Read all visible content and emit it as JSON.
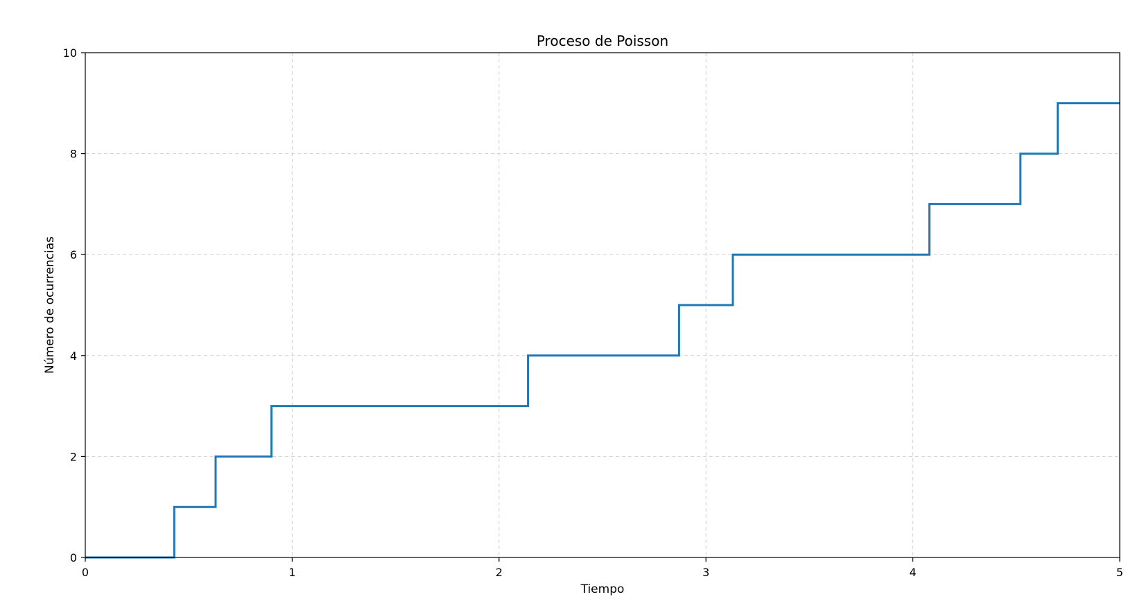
{
  "chart_data": {
    "type": "line",
    "drawstyle": "steps-post",
    "title": "Proceso de Poisson",
    "xlabel": "Tiempo",
    "ylabel": "Número de ocurrencias",
    "xlim": [
      0,
      5
    ],
    "ylim": [
      0,
      10
    ],
    "xticks": [
      0,
      1,
      2,
      3,
      4,
      5
    ],
    "yticks": [
      0,
      2,
      4,
      6,
      8,
      10
    ],
    "grid": true,
    "grid_style": "dashed",
    "legend": false,
    "series": [
      {
        "color": "#1f77b4",
        "x": [
          0,
          0.43,
          0.63,
          0.9,
          2.14,
          2.87,
          3.13,
          4.08,
          4.52,
          4.7,
          5.0
        ],
        "y": [
          0,
          1,
          2,
          3,
          4,
          5,
          6,
          7,
          8,
          9,
          9
        ]
      }
    ]
  }
}
